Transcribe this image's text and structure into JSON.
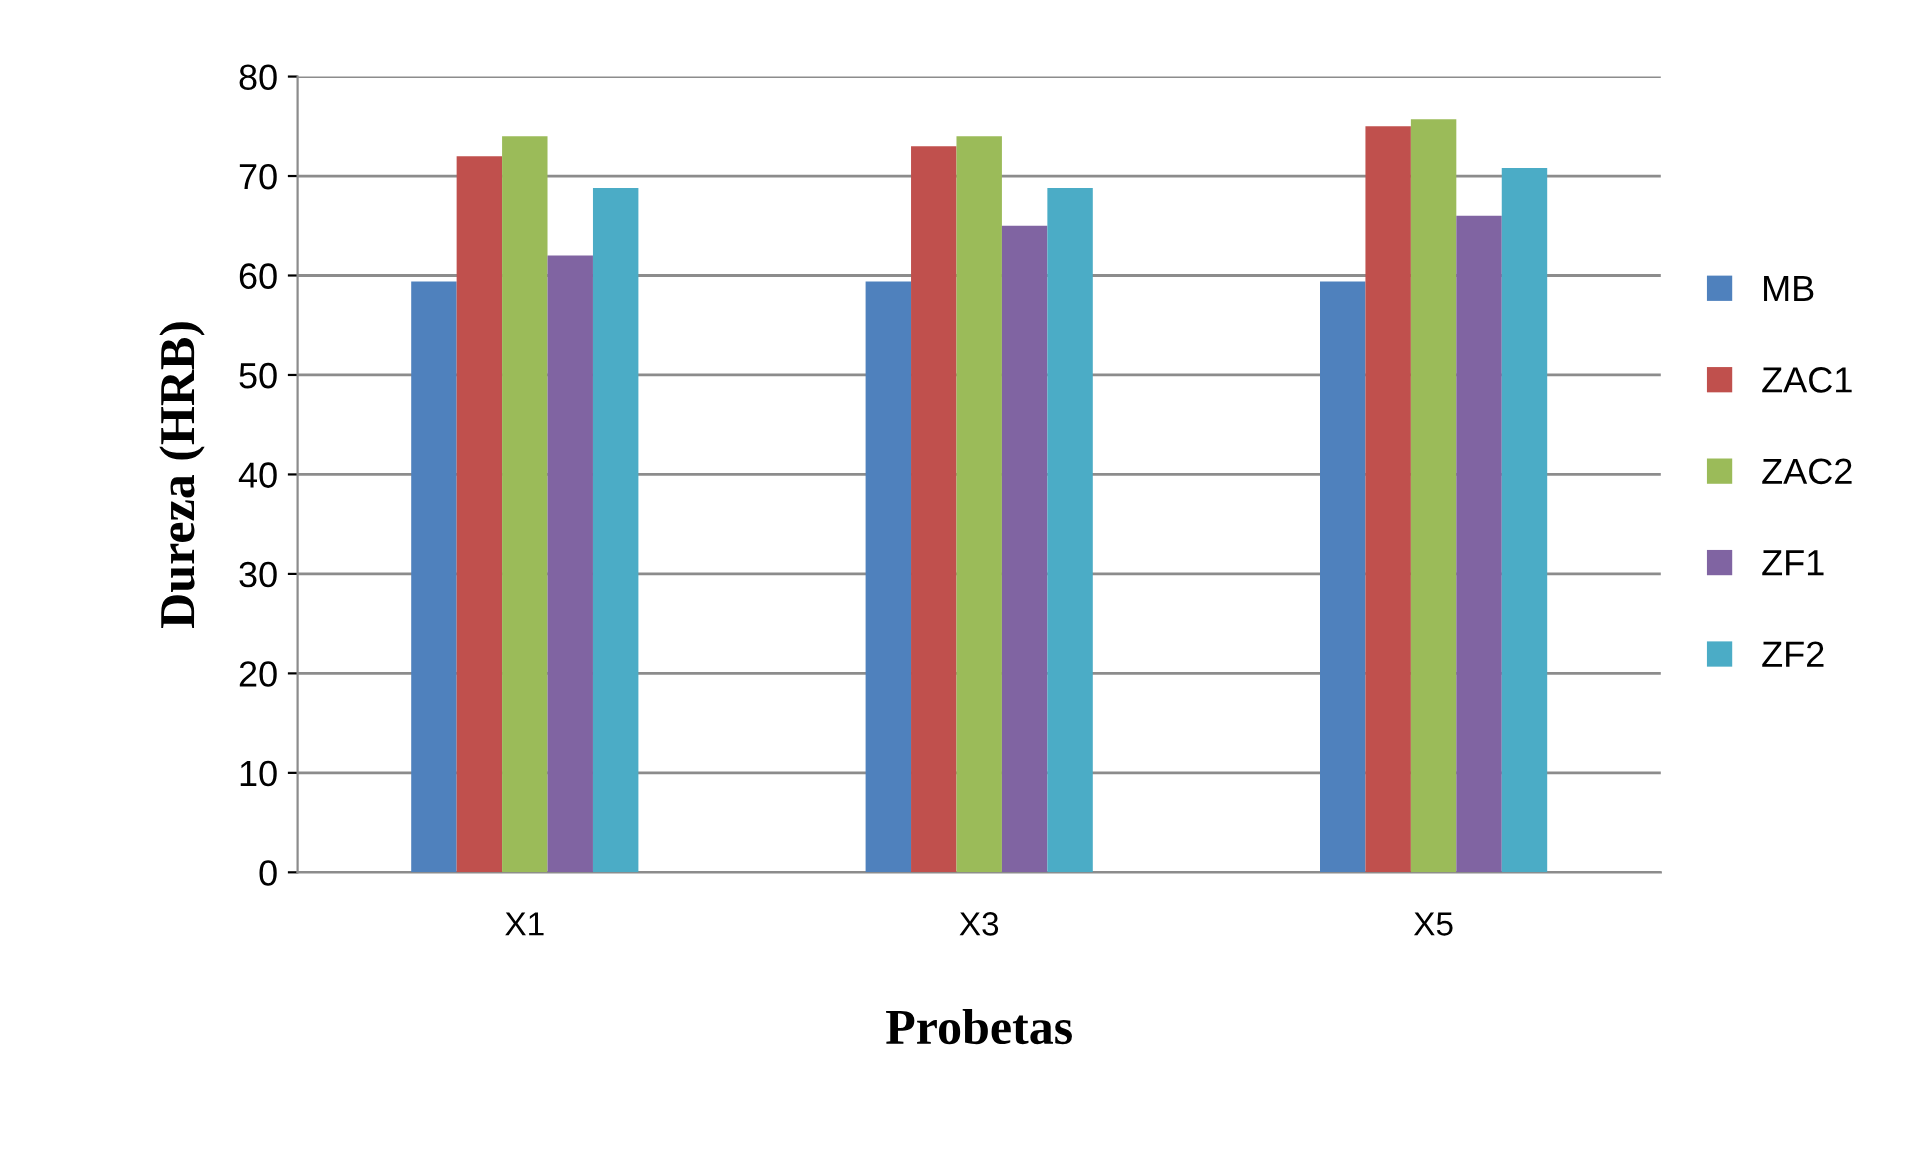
{
  "chart_data": {
    "type": "bar",
    "xlabel": "Probetas",
    "ylabel": "Dureza (HRB)",
    "categories": [
      "X1",
      "X3",
      "X5"
    ],
    "series": [
      {
        "name": "MB",
        "color": "#4f81bd",
        "values": [
          59.4,
          59.4,
          59.4
        ]
      },
      {
        "name": "ZAC1",
        "color": "#c0504d",
        "values": [
          72,
          73,
          75
        ]
      },
      {
        "name": "ZAC2",
        "color": "#9bbb59",
        "values": [
          74,
          74,
          75.7
        ]
      },
      {
        "name": "ZF1",
        "color": "#8064a2",
        "values": [
          62,
          65,
          66
        ]
      },
      {
        "name": "ZF2",
        "color": "#4bacc6",
        "values": [
          68.8,
          68.8,
          70.8
        ]
      }
    ],
    "ylim": [
      0,
      80
    ],
    "yticks": [
      0,
      10,
      20,
      30,
      40,
      50,
      60,
      70,
      80
    ],
    "grid": "y",
    "legend": "right"
  }
}
